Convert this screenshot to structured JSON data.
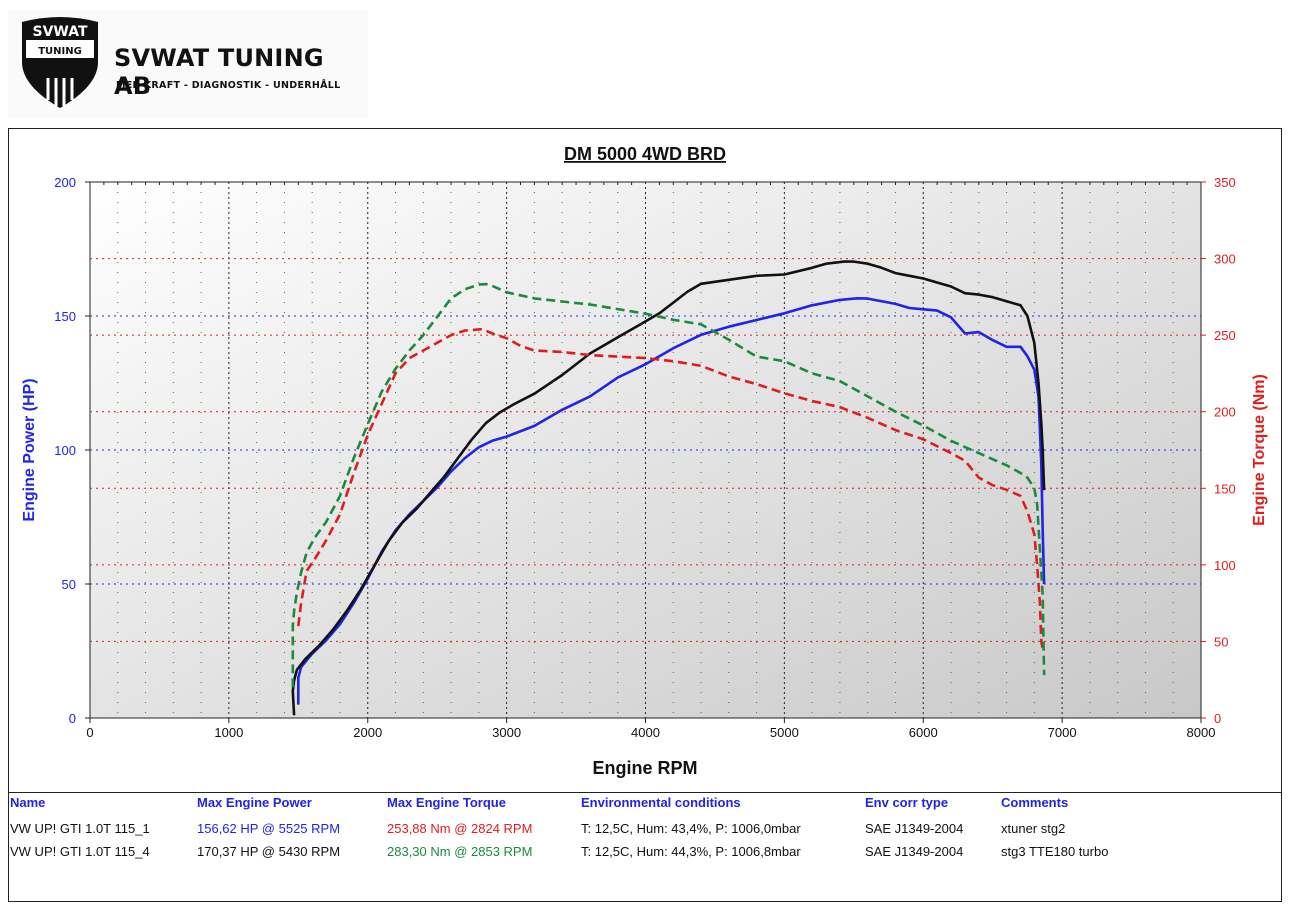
{
  "brand": {
    "logo_text": "SVWAT",
    "logo_sub": "TUNING",
    "name": "SVWAT TUNING AB",
    "tagline": "MER KRAFT - DIAGNOSTIK - UNDERHÅLL"
  },
  "colors": {
    "power_axis": "#1f24e6",
    "torque_axis": "#e01c1c",
    "run1_power": "#1f24e6",
    "run1_torque": "#e01c1c",
    "run2_power": "#111111",
    "run2_torque": "#1c8a3c",
    "plot_bg_light": "#ffffff",
    "plot_bg_dark": "#c8c8c8"
  },
  "chart_data": {
    "type": "line",
    "title": "DM 5000 4WD BRD",
    "xlabel": "Engine RPM",
    "ylabel_left": "Engine Power (HP)",
    "ylabel_right": "Engine Torque (Nm)",
    "xlim": [
      0,
      8000
    ],
    "ylim_left": [
      0,
      200
    ],
    "ylim_right": [
      0,
      350
    ],
    "x_ticks": [
      "0",
      "1000",
      "2000",
      "3000",
      "4000",
      "5000",
      "6000",
      "7000",
      "8000"
    ],
    "y_ticks_left": [
      "0",
      "50",
      "100",
      "150",
      "200"
    ],
    "y_ticks_right": [
      "0",
      "50",
      "100",
      "150",
      "200",
      "250",
      "300",
      "350"
    ],
    "grid": true,
    "series": [
      {
        "axis": "left",
        "style": "solid",
        "color": "#1f24e6",
        "x": [
          1500,
          1500,
          1520,
          1600,
          1700,
          1800,
          1900,
          2000,
          2100,
          2200,
          2300,
          2400,
          2500,
          2600,
          2700,
          2800,
          2900,
          3000,
          3200,
          3400,
          3600,
          3800,
          4000,
          4200,
          4400,
          4600,
          4800,
          5000,
          5200,
          5400,
          5525,
          5600,
          5800,
          5900,
          6000,
          6100,
          6200,
          6300,
          6400,
          6500,
          6600,
          6700,
          6750,
          6800,
          6830,
          6850,
          6860,
          6870
        ],
        "y": [
          5,
          15,
          19,
          24,
          29,
          35,
          43,
          52,
          62,
          70,
          76,
          81,
          86,
          92,
          97,
          101,
          103.5,
          105,
          109,
          115,
          120,
          127,
          132,
          138,
          143,
          146,
          148.5,
          151,
          154,
          156,
          156.6,
          156.5,
          154.5,
          153,
          152.5,
          152,
          149.5,
          143.5,
          144,
          141,
          138.5,
          138.5,
          135,
          130,
          120,
          95,
          70,
          50
        ]
      },
      {
        "axis": "left",
        "style": "solid",
        "color": "#111111",
        "x": [
          1470,
          1460,
          1470,
          1490,
          1550,
          1650,
          1750,
          1850,
          1950,
          2050,
          2150,
          2250,
          2350,
          2450,
          2550,
          2650,
          2750,
          2850,
          2950,
          3050,
          3200,
          3400,
          3600,
          3800,
          4000,
          4100,
          4200,
          4300,
          4400,
          4600,
          4800,
          5000,
          5200,
          5300,
          5430,
          5500,
          5600,
          5700,
          5800,
          5900,
          6000,
          6100,
          6200,
          6300,
          6400,
          6500,
          6600,
          6700,
          6750,
          6800,
          6830,
          6850,
          6860,
          6870
        ],
        "y": [
          1,
          10,
          14,
          18,
          22,
          27,
          33,
          40,
          48,
          57,
          66,
          73,
          78,
          84,
          90,
          97,
          104,
          110,
          114,
          117,
          121,
          128,
          136,
          142,
          148,
          151,
          155,
          159,
          162,
          163.5,
          165,
          165.5,
          168,
          169.5,
          170.3,
          170.3,
          169.5,
          168,
          166,
          165,
          164,
          162.5,
          161,
          158.5,
          158,
          157,
          155.5,
          154,
          150,
          140,
          125,
          110,
          100,
          85
        ]
      },
      {
        "axis": "right",
        "style": "dashed",
        "color": "#e01c1c",
        "x": [
          1500,
          1520,
          1560,
          1620,
          1700,
          1800,
          1900,
          2000,
          2100,
          2200,
          2300,
          2400,
          2500,
          2600,
          2700,
          2824,
          2900,
          3000,
          3100,
          3200,
          3400,
          3600,
          3800,
          4000,
          4200,
          4400,
          4600,
          4800,
          5000,
          5200,
          5400,
          5600,
          5800,
          6000,
          6200,
          6300,
          6400,
          6500,
          6600,
          6700,
          6750,
          6800,
          6820,
          6840,
          6850,
          6860
        ],
        "y": [
          60,
          75,
          96,
          104,
          116,
          133,
          160,
          185,
          205,
          225,
          235,
          240,
          245,
          250,
          253,
          253.9,
          251,
          248,
          243,
          240,
          239,
          237,
          236,
          235,
          233,
          230,
          223,
          218,
          212,
          207,
          203,
          196,
          188,
          182,
          173,
          168,
          157,
          152,
          149,
          145,
          135,
          120,
          100,
          75,
          50,
          45
        ]
      },
      {
        "axis": "right",
        "style": "dashed",
        "color": "#1c8a3c",
        "x": [
          1460,
          1460,
          1470,
          1490,
          1520,
          1560,
          1620,
          1700,
          1800,
          1900,
          2000,
          2100,
          2200,
          2300,
          2400,
          2500,
          2600,
          2700,
          2800,
          2853,
          2900,
          3000,
          3200,
          3400,
          3600,
          3800,
          4000,
          4200,
          4400,
          4600,
          4800,
          5000,
          5200,
          5400,
          5600,
          5800,
          6000,
          6200,
          6400,
          6600,
          6700,
          6750,
          6800,
          6820,
          6840,
          6860,
          6870
        ],
        "y": [
          20,
          60,
          70,
          82,
          95,
          108,
          118,
          128,
          145,
          170,
          192,
          213,
          228,
          240,
          250,
          262,
          274,
          280,
          283,
          283.3,
          282,
          278,
          274,
          272,
          270,
          267,
          264,
          260,
          257,
          247,
          236,
          233,
          225,
          220,
          210,
          200,
          191,
          181,
          173,
          165,
          160,
          157,
          150,
          140,
          110,
          80,
          28
        ]
      }
    ]
  },
  "table": {
    "headers": [
      "Name",
      "Max Engine Power",
      "Max Engine Torque",
      "Environmental conditions",
      "Env corr type",
      "Comments"
    ],
    "rows": [
      [
        "VW UP! GTI 1.0T 115_1",
        "156,62 HP @ 5525 RPM",
        "253,88 Nm @ 2824 RPM",
        "T: 12,5C, Hum: 43,4%, P: 1006,0mbar",
        "SAE J1349-2004",
        "xtuner stg2"
      ],
      [
        "VW UP! GTI 1.0T 115_4",
        "170,37 HP @ 5430 RPM",
        "283,30 Nm @ 2853 RPM",
        "T: 12,5C, Hum: 44,3%, P: 1006,8mbar",
        "SAE J1349-2004",
        "stg3 TTE180 turbo"
      ]
    ]
  }
}
